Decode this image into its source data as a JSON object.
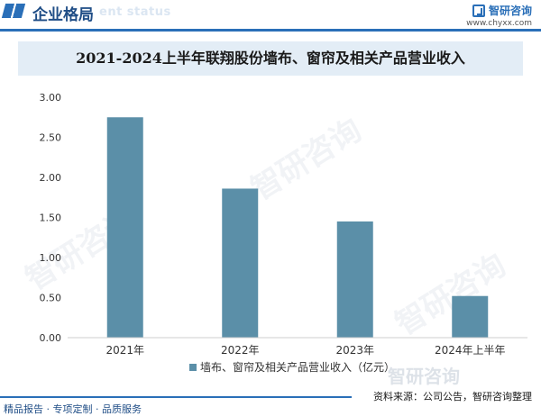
{
  "header": {
    "section_title": "企业格局",
    "section_title_en": "ent status",
    "brand_name": "智研咨询",
    "brand_url": "www.chyxx.com"
  },
  "chart_data": {
    "type": "bar",
    "title": "2021-2024上半年联翔股份墙布、窗帘及相关产品营业收入",
    "categories": [
      "2021年",
      "2022年",
      "2023年",
      "2024年上半年"
    ],
    "series": [
      {
        "name": "墙布、窗帘及相关产品营业收入（亿元）",
        "values": [
          2.75,
          1.86,
          1.45,
          0.52
        ]
      }
    ],
    "ylim": [
      0,
      3
    ],
    "yticks": [
      "0.00",
      "0.50",
      "1.00",
      "1.50",
      "2.00",
      "2.50",
      "3.00"
    ],
    "bar_color": "#5b8fa8",
    "grid": false,
    "legend_position": "bottom"
  },
  "footer": {
    "left_text": "精品报告 · 专项定制 · 品质服务",
    "source_text": "资料来源：公司公告，智研咨询整理",
    "watermark_text": "智研咨询"
  },
  "colors": {
    "accent": "#2a6fb8",
    "title_band": "#e3edf6",
    "bar": "#5b8fa8"
  }
}
